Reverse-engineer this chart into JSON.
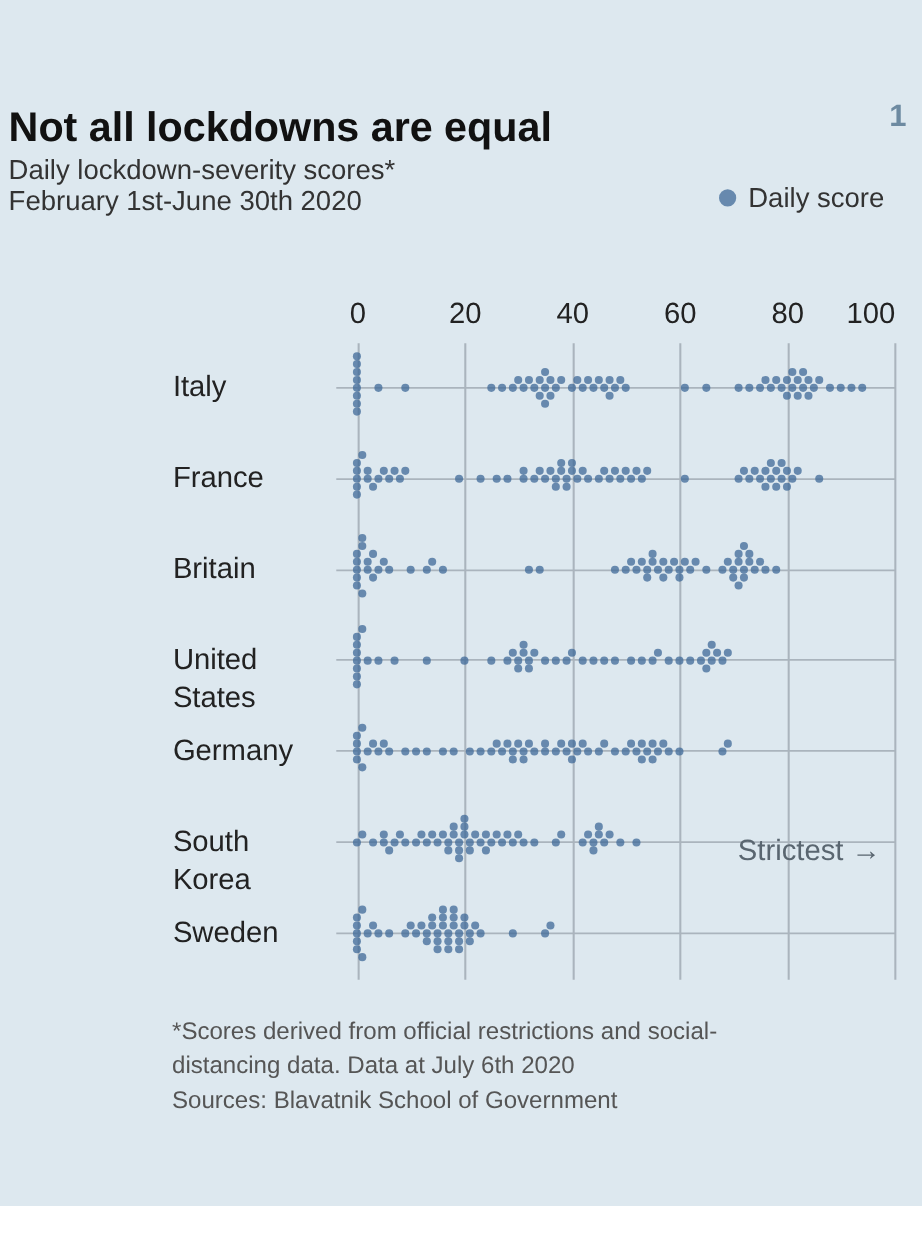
{
  "chart_data": {
    "type": "scatter",
    "orientation": "horizontal",
    "title": "Not all lockdowns are equal",
    "subtitle": [
      "Daily lockdown-severity scores*",
      "February 1st-June 30th 2020"
    ],
    "categories": [
      "Italy",
      "France",
      "Britain",
      "United States",
      "Germany",
      "South Korea",
      "Sweden"
    ],
    "series": [
      {
        "name": "Daily score",
        "color": "#3f6a98",
        "x": [
          "Italy",
          "Italy",
          "Italy",
          "Italy",
          "Italy",
          "Italy",
          "Italy",
          "Italy",
          "Italy",
          "Italy",
          "Italy",
          "Italy",
          "Italy",
          "Italy",
          "Italy",
          "Italy",
          "Italy",
          "Italy",
          "Italy",
          "Italy",
          "Italy",
          "Italy",
          "Italy",
          "Italy",
          "Italy",
          "Italy",
          "Italy",
          "Italy",
          "Italy",
          "Italy",
          "Italy",
          "Italy",
          "Italy",
          "Italy",
          "Italy",
          "Italy",
          "Italy",
          "Italy",
          "Italy",
          "Italy",
          "Italy",
          "Italy",
          "Italy",
          "Italy",
          "Italy",
          "Italy",
          "Italy",
          "Italy",
          "Italy",
          "Italy",
          "Italy",
          "Italy",
          "Italy",
          "Italy",
          "Italy",
          "Italy",
          "Italy",
          "Italy",
          "Italy",
          "Italy",
          "Italy",
          "Italy",
          "Italy"
        ],
        "values": [
          0,
          0,
          0,
          0,
          0,
          0,
          0,
          0,
          4,
          9,
          25,
          27,
          29,
          30,
          31,
          32,
          33,
          34,
          34,
          35,
          35,
          35,
          36,
          36,
          37,
          38,
          40,
          41,
          42,
          43,
          44,
          45,
          46,
          47,
          47,
          48,
          49,
          50,
          61,
          65,
          71,
          73,
          75,
          76,
          77,
          78,
          79,
          80,
          80,
          81,
          81,
          82,
          82,
          83,
          83,
          84,
          84,
          85,
          86,
          88,
          90,
          92,
          94
        ]
      },
      {
        "color": "#3f6a98",
        "x": [
          "France",
          "France",
          "France",
          "France",
          "France",
          "France",
          "France",
          "France",
          "France",
          "France",
          "France",
          "France",
          "France",
          "France",
          "France",
          "France",
          "France",
          "France",
          "France",
          "France",
          "France",
          "France",
          "France",
          "France",
          "France",
          "France",
          "France",
          "France",
          "France",
          "France",
          "France",
          "France",
          "France",
          "France",
          "France",
          "France",
          "France",
          "France",
          "France",
          "France",
          "France",
          "France",
          "France",
          "France",
          "France",
          "France",
          "France",
          "France",
          "France",
          "France",
          "France",
          "France",
          "France",
          "France",
          "France",
          "France",
          "France",
          "France",
          "France",
          "France",
          "France",
          "France",
          "France",
          "France",
          "France"
        ],
        "values": [
          0,
          0,
          0,
          0,
          0,
          1,
          2,
          2,
          3,
          4,
          5,
          6,
          7,
          8,
          9,
          19,
          23,
          26,
          28,
          31,
          31,
          33,
          34,
          35,
          36,
          37,
          37,
          38,
          38,
          39,
          39,
          40,
          40,
          41,
          42,
          43,
          45,
          46,
          47,
          48,
          49,
          50,
          51,
          52,
          53,
          54,
          61,
          71,
          72,
          73,
          74,
          75,
          76,
          76,
          77,
          77,
          78,
          78,
          79,
          79,
          80,
          80,
          81,
          82,
          86
        ]
      },
      {
        "color": "#3f6a98",
        "x": [
          "Britain",
          "Britain",
          "Britain",
          "Britain",
          "Britain",
          "Britain",
          "Britain",
          "Britain",
          "Britain",
          "Britain",
          "Britain",
          "Britain",
          "Britain",
          "Britain",
          "Britain",
          "Britain",
          "Britain",
          "Britain",
          "Britain",
          "Britain",
          "Britain",
          "Britain",
          "Britain",
          "Britain",
          "Britain",
          "Britain",
          "Britain",
          "Britain",
          "Britain",
          "Britain",
          "Britain",
          "Britain",
          "Britain",
          "Britain",
          "Britain",
          "Britain",
          "Britain",
          "Britain",
          "Britain",
          "Britain",
          "Britain",
          "Britain",
          "Britain",
          "Britain",
          "Britain",
          "Britain",
          "Britain",
          "Britain",
          "Britain",
          "Britain",
          "Britain",
          "Britain",
          "Britain",
          "Britain",
          "Britain",
          "Britain",
          "Britain"
        ],
        "values": [
          0,
          0,
          0,
          0,
          0,
          1,
          1,
          1,
          2,
          2,
          3,
          3,
          4,
          5,
          6,
          10,
          13,
          14,
          16,
          32,
          34,
          48,
          50,
          51,
          52,
          53,
          54,
          54,
          55,
          55,
          56,
          57,
          57,
          58,
          59,
          60,
          60,
          61,
          62,
          63,
          65,
          68,
          69,
          70,
          70,
          71,
          71,
          71,
          72,
          72,
          72,
          73,
          73,
          74,
          75,
          76,
          78
        ]
      },
      {
        "color": "#3f6a98",
        "x": [
          "United States",
          "United States",
          "United States",
          "United States",
          "United States",
          "United States",
          "United States",
          "United States",
          "United States",
          "United States",
          "United States",
          "United States",
          "United States",
          "United States",
          "United States",
          "United States",
          "United States",
          "United States",
          "United States",
          "United States",
          "United States",
          "United States",
          "United States",
          "United States",
          "United States",
          "United States",
          "United States",
          "United States",
          "United States",
          "United States",
          "United States",
          "United States",
          "United States",
          "United States",
          "United States",
          "United States",
          "United States",
          "United States",
          "United States",
          "United States",
          "United States",
          "United States",
          "United States",
          "United States",
          "United States",
          "United States"
        ],
        "values": [
          0,
          0,
          0,
          0,
          0,
          0,
          0,
          1,
          2,
          4,
          7,
          13,
          20,
          25,
          28,
          29,
          30,
          30,
          31,
          31,
          32,
          32,
          33,
          35,
          37,
          39,
          40,
          42,
          44,
          46,
          48,
          51,
          53,
          55,
          56,
          58,
          60,
          62,
          64,
          65,
          65,
          66,
          66,
          67,
          68,
          69
        ]
      },
      {
        "color": "#3f6a98",
        "x": [
          "Germany",
          "Germany",
          "Germany",
          "Germany",
          "Germany",
          "Germany",
          "Germany",
          "Germany",
          "Germany",
          "Germany",
          "Germany",
          "Germany",
          "Germany",
          "Germany",
          "Germany",
          "Germany",
          "Germany",
          "Germany",
          "Germany",
          "Germany",
          "Germany",
          "Germany",
          "Germany",
          "Germany",
          "Germany",
          "Germany",
          "Germany",
          "Germany",
          "Germany",
          "Germany",
          "Germany",
          "Germany",
          "Germany",
          "Germany",
          "Germany",
          "Germany",
          "Germany",
          "Germany",
          "Germany",
          "Germany",
          "Germany",
          "Germany",
          "Germany",
          "Germany",
          "Germany",
          "Germany",
          "Germany",
          "Germany",
          "Germany",
          "Germany",
          "Germany",
          "Germany",
          "Germany",
          "Germany",
          "Germany",
          "Germany"
        ],
        "values": [
          0,
          0,
          0,
          0,
          1,
          1,
          2,
          3,
          4,
          5,
          6,
          9,
          11,
          13,
          16,
          18,
          21,
          23,
          25,
          26,
          27,
          28,
          29,
          29,
          30,
          31,
          31,
          32,
          33,
          35,
          35,
          37,
          38,
          39,
          40,
          40,
          41,
          42,
          43,
          45,
          46,
          48,
          50,
          51,
          52,
          53,
          53,
          54,
          55,
          55,
          56,
          57,
          58,
          60,
          68,
          69
        ]
      },
      {
        "color": "#3f6a98",
        "x": [
          "South Korea",
          "South Korea",
          "South Korea",
          "South Korea",
          "South Korea",
          "South Korea",
          "South Korea",
          "South Korea",
          "South Korea",
          "South Korea",
          "South Korea",
          "South Korea",
          "South Korea",
          "South Korea",
          "South Korea",
          "South Korea",
          "South Korea",
          "South Korea",
          "South Korea",
          "South Korea",
          "South Korea",
          "South Korea",
          "South Korea",
          "South Korea",
          "South Korea",
          "South Korea",
          "South Korea",
          "South Korea",
          "South Korea",
          "South Korea",
          "South Korea",
          "South Korea",
          "South Korea",
          "South Korea",
          "South Korea",
          "South Korea",
          "South Korea",
          "South Korea",
          "South Korea",
          "South Korea",
          "South Korea",
          "South Korea",
          "South Korea",
          "South Korea",
          "South Korea",
          "South Korea",
          "South Korea",
          "South Korea",
          "South Korea",
          "South Korea",
          "South Korea"
        ],
        "values": [
          0,
          1,
          3,
          5,
          5,
          6,
          7,
          8,
          9,
          11,
          12,
          13,
          14,
          15,
          16,
          17,
          17,
          18,
          18,
          19,
          19,
          19,
          20,
          20,
          20,
          21,
          21,
          22,
          23,
          24,
          24,
          25,
          26,
          27,
          28,
          29,
          30,
          31,
          33,
          37,
          38,
          42,
          43,
          44,
          44,
          45,
          45,
          46,
          47,
          49,
          52
        ]
      },
      {
        "color": "#3f6a98",
        "x": [
          "Sweden",
          "Sweden",
          "Sweden",
          "Sweden",
          "Sweden",
          "Sweden",
          "Sweden",
          "Sweden",
          "Sweden",
          "Sweden",
          "Sweden",
          "Sweden",
          "Sweden",
          "Sweden",
          "Sweden",
          "Sweden",
          "Sweden",
          "Sweden",
          "Sweden",
          "Sweden",
          "Sweden",
          "Sweden",
          "Sweden",
          "Sweden",
          "Sweden",
          "Sweden",
          "Sweden",
          "Sweden",
          "Sweden",
          "Sweden",
          "Sweden",
          "Sweden",
          "Sweden",
          "Sweden",
          "Sweden",
          "Sweden",
          "Sweden",
          "Sweden",
          "Sweden",
          "Sweden",
          "Sweden",
          "Sweden",
          "Sweden"
        ],
        "values": [
          0,
          0,
          0,
          0,
          0,
          1,
          1,
          2,
          3,
          4,
          6,
          9,
          10,
          11,
          12,
          13,
          13,
          14,
          14,
          15,
          15,
          15,
          16,
          16,
          16,
          17,
          17,
          17,
          18,
          18,
          18,
          19,
          19,
          19,
          20,
          20,
          21,
          21,
          22,
          23,
          29,
          35,
          36
        ]
      }
    ],
    "xlim": [
      -4,
      100
    ],
    "xticks": [
      0,
      20,
      40,
      60,
      80,
      100
    ],
    "grid": true,
    "legend": "top right",
    "annotations": [
      "Strictest →",
      "*Scores derived from official restrictions and social-distancing data. Data at July 6th 2020",
      "Sources: Blavatnik School of Government",
      "1"
    ]
  }
}
